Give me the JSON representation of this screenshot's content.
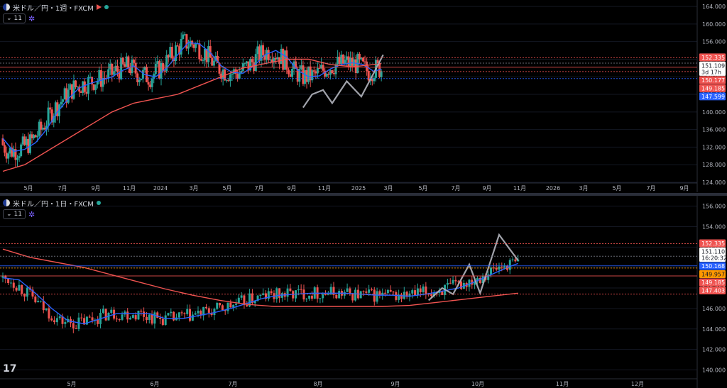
{
  "chart_data": [
    {
      "type": "candlestick",
      "title": "米ドル／円・1週・FXCM",
      "indicator_label": "11",
      "price_axis": {
        "ticks": [
          "164.000",
          "160.000",
          "156.000",
          "152.000",
          "148.000",
          "144.000",
          "140.000",
          "136.000",
          "132.000",
          "128.000",
          "124.000"
        ],
        "range": [
          124,
          164.5
        ]
      },
      "time_axis": {
        "ticks": [
          "5月",
          "7月",
          "9月",
          "11月",
          "2024",
          "3月",
          "5月",
          "7月",
          "9月",
          "11月",
          "2025",
          "3月",
          "5月",
          "7月",
          "9月",
          "11月",
          "2026",
          "3月",
          "5月",
          "7月",
          "9月"
        ]
      },
      "levels": [
        {
          "value": 152.335,
          "label": "152.335",
          "color": "#ef5350"
        },
        {
          "value": 151.109,
          "label": "151.109",
          "sub": "3d 17h",
          "color": "#ffffff"
        },
        {
          "value": 150.177,
          "label": "150.177",
          "color": "#ef5350"
        },
        {
          "value": 149.185,
          "label": "149.185",
          "color": "#ef5350"
        },
        {
          "value": 147.599,
          "label": "147.599",
          "color": "#2962ff"
        }
      ],
      "series": [
        {
          "name": "",
          "kind": "ma_short",
          "color": "#2962ff",
          "values": [
            [
              0,
              134
            ],
            [
              6,
              131
            ],
            [
              12,
              131.5
            ],
            [
              18,
              133
            ],
            [
              24,
              136
            ],
            [
              30,
              140
            ],
            [
              36,
              143
            ],
            [
              42,
              145.5
            ],
            [
              48,
              146.5
            ],
            [
              54,
              147.2
            ],
            [
              60,
              148
            ],
            [
              66,
              149.5
            ],
            [
              72,
              150.5
            ],
            [
              78,
              148.5
            ],
            [
              84,
              148
            ],
            [
              90,
              150
            ],
            [
              96,
              153
            ],
            [
              102,
              155.8
            ],
            [
              108,
              155.5
            ],
            [
              114,
              153.5
            ],
            [
              120,
              150.5
            ],
            [
              126,
              149
            ],
            [
              132,
              148.8
            ],
            [
              138,
              150.5
            ],
            [
              144,
              153
            ],
            [
              150,
              154
            ],
            [
              156,
              152.5
            ],
            [
              162,
              149.5
            ],
            [
              168,
              148
            ],
            [
              174,
              148.2
            ],
            [
              180,
              149.8
            ],
            [
              186,
              150.8
            ],
            [
              192,
              151.2
            ],
            [
              198,
              150.8
            ],
            [
              204,
              149.2
            ],
            [
              208,
              149.8
            ]
          ]
        },
        {
          "name": "",
          "kind": "ma_long",
          "color": "#ef5350",
          "values": [
            [
              0,
              126.5
            ],
            [
              12,
              128
            ],
            [
              24,
              131
            ],
            [
              36,
              134
            ],
            [
              48,
              137
            ],
            [
              60,
              140
            ],
            [
              72,
              142
            ],
            [
              84,
              143
            ],
            [
              96,
              144
            ],
            [
              108,
              146
            ],
            [
              120,
              148
            ],
            [
              132,
              150
            ],
            [
              144,
              151
            ],
            [
              156,
              152
            ],
            [
              168,
              152
            ],
            [
              180,
              150.8
            ],
            [
              192,
              150.3
            ],
            [
              200,
              150.6
            ],
            [
              208,
              151
            ]
          ]
        }
      ],
      "candles": [],
      "swing_line": [
        [
          165,
          141
        ],
        [
          170,
          144
        ],
        [
          176,
          145
        ],
        [
          181,
          142
        ],
        [
          189,
          147
        ],
        [
          197,
          143.5
        ],
        [
          204,
          149
        ],
        [
          209,
          153
        ]
      ]
    },
    {
      "type": "candlestick",
      "title": "米ドル／円・1日・FXCM",
      "indicator_label": "11",
      "price_axis": {
        "ticks": [
          "156.000",
          "154.000",
          "152.000",
          "150.000",
          "148.000",
          "146.000",
          "144.000",
          "142.000",
          "140.000"
        ],
        "range": [
          139.2,
          156.6
        ]
      },
      "time_axis": {
        "ticks": [
          "5月",
          "6月",
          "7月",
          "8月",
          "9月",
          "10月",
          "11月",
          "12月"
        ]
      },
      "levels": [
        {
          "value": 152.335,
          "label": "152.335",
          "color": "#ef5350"
        },
        {
          "value": 151.11,
          "label": "151.110",
          "sub": "16:20:32",
          "color": "#ffffff"
        },
        {
          "value": 150.168,
          "label": "150.168",
          "color": "#2962ff"
        },
        {
          "value": 149.957,
          "label": "149.957",
          "color": "#ff9800"
        },
        {
          "value": 149.185,
          "label": "149.185",
          "color": "#ef5350"
        },
        {
          "value": 147.403,
          "label": "147.403",
          "color": "#ef5350"
        }
      ],
      "series": [
        {
          "name": "",
          "kind": "ma_short",
          "color": "#2962ff",
          "values": [
            [
              0,
              149
            ],
            [
              6,
              148.8
            ],
            [
              12,
              147.5
            ],
            [
              18,
              146
            ],
            [
              24,
              144.8
            ],
            [
              30,
              144.5
            ],
            [
              36,
              145
            ],
            [
              42,
              145.5
            ],
            [
              48,
              145.5
            ],
            [
              54,
              145.5
            ],
            [
              60,
              145
            ],
            [
              66,
              145
            ],
            [
              72,
              145.3
            ],
            [
              78,
              145.6
            ],
            [
              84,
              146
            ],
            [
              90,
              146.5
            ],
            [
              96,
              147
            ],
            [
              102,
              147.3
            ],
            [
              108,
              147.4
            ],
            [
              114,
              147.5
            ],
            [
              120,
              147.5
            ],
            [
              126,
              147.5
            ],
            [
              132,
              147.4
            ],
            [
              138,
              147.3
            ],
            [
              144,
              147.3
            ],
            [
              150,
              147.2
            ],
            [
              156,
              147.4
            ],
            [
              162,
              147.7
            ],
            [
              168,
              148
            ],
            [
              174,
              148.6
            ],
            [
              180,
              149.3
            ],
            [
              186,
              150
            ],
            [
              190,
              150.4
            ]
          ]
        },
        {
          "name": "",
          "kind": "ma_long",
          "color": "#ef5350",
          "values": [
            [
              0,
              151.8
            ],
            [
              10,
              151
            ],
            [
              20,
              150.5
            ],
            [
              30,
              150
            ],
            [
              40,
              149.3
            ],
            [
              50,
              148.6
            ],
            [
              60,
              147.9
            ],
            [
              70,
              147.3
            ],
            [
              80,
              146.8
            ],
            [
              90,
              146.4
            ],
            [
              100,
              146.2
            ],
            [
              110,
              146.2
            ],
            [
              120,
              146.2
            ],
            [
              130,
              146.2
            ],
            [
              140,
              146.2
            ],
            [
              150,
              146.3
            ],
            [
              160,
              146.6
            ],
            [
              170,
              146.9
            ],
            [
              180,
              147.2
            ],
            [
              190,
              147.5
            ]
          ]
        }
      ],
      "candles": [],
      "swing_line": [
        [
          157,
          146.8
        ],
        [
          162,
          148
        ],
        [
          166,
          147.4
        ],
        [
          172,
          150.3
        ],
        [
          176,
          147.5
        ],
        [
          183,
          153.2
        ],
        [
          190,
          150.7
        ]
      ]
    }
  ]
}
